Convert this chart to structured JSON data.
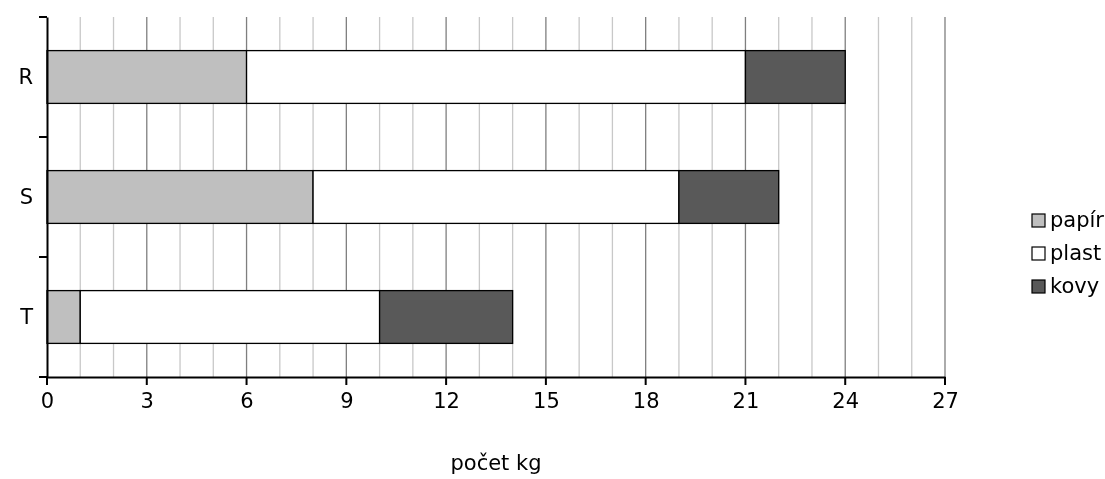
{
  "chart_data": {
    "type": "bar",
    "orientation": "horizontal",
    "stacked": true,
    "xlabel": "počet kg",
    "categories": [
      "R",
      "S",
      "T"
    ],
    "series": [
      {
        "name": "papír",
        "color": "#bfbfbf",
        "values": [
          6,
          8,
          1
        ]
      },
      {
        "name": "plast",
        "color": "#ffffff",
        "values": [
          15,
          11,
          9
        ]
      },
      {
        "name": "kovy",
        "color": "#595959",
        "values": [
          3,
          3,
          4
        ]
      }
    ],
    "xlim": [
      0,
      27
    ],
    "xticks": [
      0,
      {
        "value": 1,
        "label": null
      },
      {
        "value": 2,
        "label": null
      },
      3,
      {
        "value": 4,
        "label": null
      },
      {
        "value": 5,
        "label": null
      },
      6,
      {
        "value": 7,
        "label": null
      },
      {
        "value": 8,
        "label": null
      },
      9,
      {
        "value": 10,
        "label": null
      },
      {
        "value": 11,
        "label": null
      },
      12,
      {
        "value": 13,
        "label": null
      },
      {
        "value": 14,
        "label": null
      },
      15,
      {
        "value": 16,
        "label": null
      },
      {
        "value": 17,
        "label": null
      },
      18,
      {
        "value": 19,
        "label": null
      },
      {
        "value": 20,
        "label": null
      },
      21,
      {
        "value": 22,
        "label": null
      },
      {
        "value": 23,
        "label": null
      },
      24,
      {
        "value": 25,
        "label": null
      },
      {
        "value": 26,
        "label": null
      },
      27
    ],
    "grid": "x",
    "legend": "right"
  }
}
